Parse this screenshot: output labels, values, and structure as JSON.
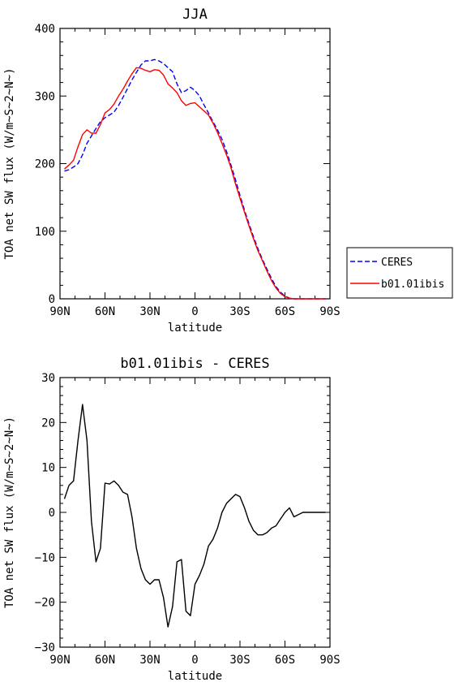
{
  "chart_data": [
    {
      "type": "line",
      "title": "JJA",
      "xlabel": "latitude",
      "ylabel": "TOA net SW flux (W/m~S~2~N~)",
      "xlim": [
        90,
        -90
      ],
      "ylim": [
        0,
        400
      ],
      "xticks": [
        {
          "value": 90,
          "label": "90N"
        },
        {
          "value": 60,
          "label": "60N"
        },
        {
          "value": 30,
          "label": "30N"
        },
        {
          "value": 0,
          "label": "0"
        },
        {
          "value": -30,
          "label": "30S"
        },
        {
          "value": -60,
          "label": "60S"
        },
        {
          "value": -90,
          "label": "90S"
        }
      ],
      "yticks": [
        {
          "value": 0,
          "label": "0"
        },
        {
          "value": 100,
          "label": "100"
        },
        {
          "value": 200,
          "label": "200"
        },
        {
          "value": 300,
          "label": "300"
        },
        {
          "value": 400,
          "label": "400"
        }
      ],
      "legend": {
        "placement": "right-outside"
      },
      "series": [
        {
          "name": "CERES",
          "color": "#0000ff",
          "dash": "dashed",
          "x": [
            87,
            84,
            81,
            78,
            75,
            72,
            69,
            66,
            63,
            60,
            57,
            54,
            51,
            48,
            45,
            42,
            39,
            36,
            33,
            30,
            27,
            24,
            21,
            18,
            15,
            12,
            9,
            6,
            3,
            0,
            -3,
            -6,
            -9,
            -12,
            -15,
            -18,
            -21,
            -24,
            -27,
            -30,
            -33,
            -36,
            -39,
            -42,
            -45,
            -48,
            -51,
            -54,
            -57,
            -60,
            -63,
            -66,
            -69,
            -72,
            -75,
            -78,
            -81,
            -84,
            -87
          ],
          "y": [
            189,
            191,
            195,
            200,
            213,
            230,
            241,
            252,
            262,
            268,
            272,
            276,
            286,
            298,
            311,
            324,
            335,
            346,
            352,
            352,
            354,
            352,
            348,
            342,
            336,
            318,
            305,
            308,
            313,
            308,
            300,
            287,
            275,
            262,
            250,
            236,
            218,
            198,
            176,
            153,
            131,
            111,
            92,
            74,
            58,
            44,
            30,
            18,
            10,
            4,
            1,
            0,
            0,
            0,
            0,
            0,
            0,
            0,
            0
          ]
        },
        {
          "name": "b01.01ibis",
          "color": "#ff0000",
          "dash": "solid",
          "x": [
            87,
            84,
            81,
            78,
            75,
            72,
            69,
            66,
            63,
            60,
            57,
            54,
            51,
            48,
            45,
            42,
            39,
            36,
            33,
            30,
            27,
            24,
            21,
            18,
            15,
            12,
            9,
            6,
            3,
            0,
            -3,
            -6,
            -9,
            -12,
            -15,
            -18,
            -21,
            -24,
            -27,
            -30,
            -33,
            -36,
            -39,
            -42,
            -45,
            -48,
            -51,
            -54,
            -57,
            -60,
            -63,
            -66,
            -69,
            -72,
            -75,
            -78,
            -81,
            -84,
            -87
          ],
          "y": [
            192,
            198,
            205,
            225,
            243,
            250,
            245,
            245,
            258,
            275,
            280,
            288,
            300,
            310,
            322,
            333,
            342,
            341,
            338,
            336,
            339,
            338,
            331,
            318,
            312,
            305,
            293,
            286,
            289,
            290,
            284,
            278,
            272,
            260,
            246,
            230,
            213,
            194,
            170,
            149,
            128,
            108,
            89,
            71,
            56,
            41,
            27,
            16,
            8,
            3,
            1,
            0,
            0,
            0,
            0,
            0,
            0,
            0,
            0
          ]
        }
      ]
    },
    {
      "type": "line",
      "title": "b01.01ibis - CERES",
      "xlabel": "latitude",
      "ylabel": "TOA net SW flux (W/m~S~2~N~)",
      "xlim": [
        90,
        -90
      ],
      "ylim": [
        -30,
        30
      ],
      "xticks": [
        {
          "value": 90,
          "label": "90N"
        },
        {
          "value": 60,
          "label": "60N"
        },
        {
          "value": 30,
          "label": "30N"
        },
        {
          "value": 0,
          "label": "0"
        },
        {
          "value": -30,
          "label": "30S"
        },
        {
          "value": -60,
          "label": "60S"
        },
        {
          "value": -90,
          "label": "90S"
        }
      ],
      "yticks": [
        {
          "value": -30,
          "label": "−30"
        },
        {
          "value": -20,
          "label": "−20"
        },
        {
          "value": -10,
          "label": "−10"
        },
        {
          "value": 0,
          "label": "0"
        },
        {
          "value": 10,
          "label": "10"
        },
        {
          "value": 20,
          "label": "20"
        },
        {
          "value": 30,
          "label": "30"
        }
      ],
      "series": [
        {
          "color": "#000000",
          "dash": "solid",
          "x": [
            87,
            84,
            81,
            78,
            75,
            72,
            69,
            66,
            63,
            60,
            57,
            54,
            51,
            48,
            45,
            42,
            39,
            36,
            33,
            30,
            27,
            24,
            21,
            18,
            15,
            12,
            9,
            6,
            3,
            0,
            -3,
            -6,
            -9,
            -12,
            -15,
            -18,
            -21,
            -24,
            -27,
            -30,
            -33,
            -36,
            -39,
            -42,
            -45,
            -48,
            -51,
            -54,
            -57,
            -60,
            -63,
            -66,
            -69,
            -72,
            -75,
            -78,
            -81,
            -84,
            -87
          ],
          "y": [
            3,
            6,
            7,
            16,
            24,
            16,
            -2,
            -11,
            -8,
            6.5,
            6.3,
            7,
            6,
            4.5,
            4,
            -1,
            -8,
            -12.5,
            -15,
            -16,
            -15,
            -15,
            -19,
            -25.5,
            -21,
            -11,
            -10.5,
            -22,
            -23,
            -16,
            -14,
            -11.5,
            -7.5,
            -6,
            -3.5,
            0,
            2,
            3,
            4,
            3.5,
            1,
            -2,
            -4,
            -5,
            -5,
            -4.5,
            -3.5,
            -3,
            -1.5,
            0,
            1,
            -1,
            -0.5,
            0,
            0,
            0,
            0,
            0,
            0
          ]
        }
      ]
    }
  ]
}
